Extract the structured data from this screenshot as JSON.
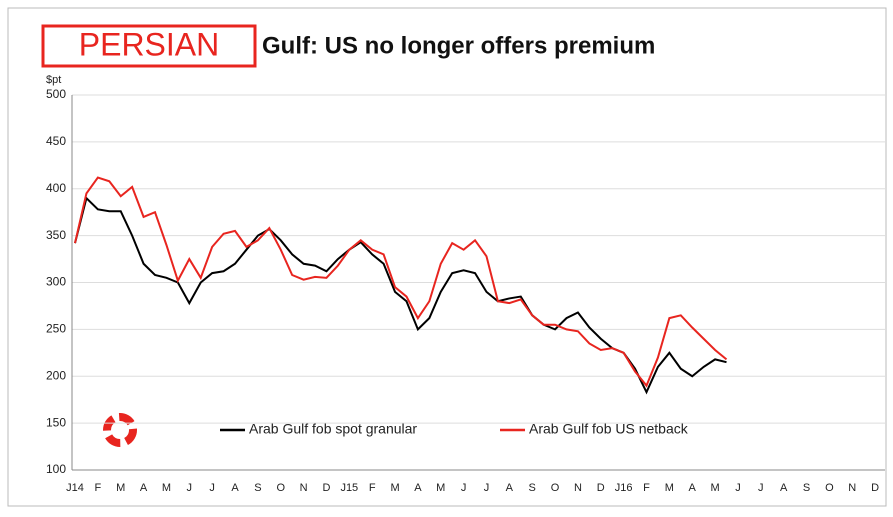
{
  "chart_data": {
    "type": "line",
    "title_highlight": "PERSIAN",
    "title": "Gulf: US no longer offers premium",
    "y_axis_label": "$pt",
    "categories": [
      "J14",
      null,
      "F",
      null,
      "M",
      null,
      "A",
      null,
      "M",
      null,
      "J",
      null,
      "J",
      null,
      "A",
      null,
      "S",
      null,
      "O",
      null,
      "N",
      null,
      "D",
      null,
      "J15",
      null,
      "F",
      null,
      "M",
      null,
      "A",
      null,
      "M",
      null,
      "J",
      null,
      "J",
      null,
      "A",
      null,
      "S",
      null,
      "O",
      null,
      "N",
      null,
      "D",
      null,
      "J16",
      null,
      "F",
      null,
      "M",
      null,
      "A",
      null,
      "M",
      null,
      "J",
      null,
      "J",
      null,
      "A",
      null,
      "S",
      null,
      "O",
      null,
      "N",
      null,
      "D",
      null
    ],
    "series": [
      {
        "name": "Arab Gulf fob spot granular",
        "color": "#000000",
        "values": [
          342,
          390,
          378,
          376,
          376,
          350,
          320,
          308,
          305,
          300,
          278,
          300,
          310,
          312,
          320,
          335,
          350,
          357,
          345,
          330,
          320,
          318,
          312,
          325,
          335,
          343,
          330,
          320,
          290,
          280,
          250,
          262,
          290,
          310,
          313,
          310,
          290,
          280,
          283,
          285,
          265,
          255,
          250,
          262,
          268,
          252,
          240,
          230,
          225,
          208,
          183,
          210,
          225,
          208,
          200,
          210,
          218,
          215,
          null,
          null,
          null,
          null,
          null,
          null,
          null,
          null,
          null,
          null,
          null,
          null,
          null,
          null
        ]
      },
      {
        "name": "Arab Gulf fob US netback",
        "color": "#e8251f",
        "values": [
          342,
          395,
          412,
          408,
          392,
          402,
          370,
          375,
          340,
          302,
          325,
          305,
          338,
          352,
          355,
          338,
          345,
          358,
          335,
          308,
          303,
          306,
          305,
          318,
          335,
          345,
          335,
          330,
          295,
          285,
          262,
          280,
          320,
          342,
          335,
          345,
          328,
          280,
          278,
          282,
          265,
          255,
          255,
          250,
          248,
          235,
          228,
          230,
          225,
          205,
          190,
          220,
          262,
          265,
          252,
          240,
          228,
          218,
          null,
          null,
          null,
          null,
          null,
          null,
          null,
          null,
          null,
          null,
          null,
          null,
          null,
          null
        ]
      }
    ],
    "ylim": [
      100,
      500
    ],
    "yticks": [
      100,
      150,
      200,
      250,
      300,
      350,
      400,
      450,
      500
    ],
    "grid": true,
    "legend": "bottom"
  }
}
